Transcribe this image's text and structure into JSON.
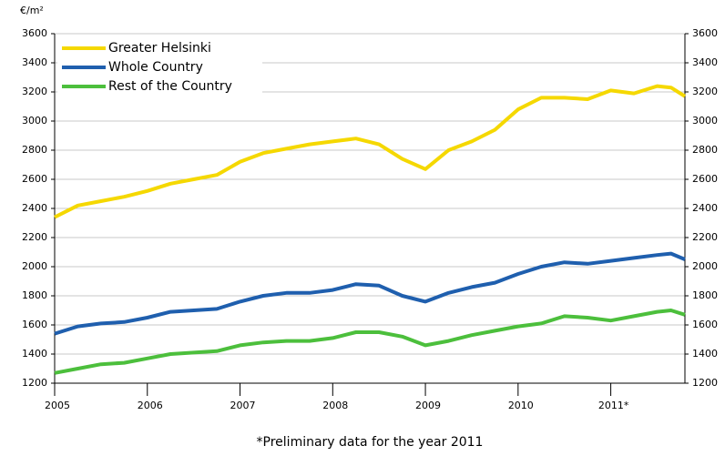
{
  "chart_data": {
    "type": "line",
    "y_label": "€/m²",
    "footnote": "*Preliminary data for the year 2011",
    "x": [
      2005,
      2005.25,
      2005.5,
      2005.75,
      2006,
      2006.25,
      2006.5,
      2006.75,
      2007,
      2007.25,
      2007.5,
      2007.75,
      2008,
      2008.25,
      2008.5,
      2008.75,
      2009,
      2009.25,
      2009.5,
      2009.75,
      2010,
      2010.25,
      2010.5,
      2010.75,
      2011,
      2011.25,
      2011.5,
      2011.65,
      2011.8
    ],
    "series": [
      {
        "name": "Greater Helsinki",
        "color": "#f5d800",
        "values": [
          2340,
          2420,
          2450,
          2480,
          2520,
          2570,
          2600,
          2630,
          2720,
          2780,
          2810,
          2840,
          2860,
          2880,
          2840,
          2740,
          2670,
          2800,
          2860,
          2940,
          3080,
          3160,
          3160,
          3150,
          3210,
          3190,
          3240,
          3230,
          3170
        ]
      },
      {
        "name": "Whole Country",
        "color": "#1f5fae",
        "values": [
          1540,
          1590,
          1610,
          1620,
          1650,
          1690,
          1700,
          1710,
          1760,
          1800,
          1820,
          1820,
          1840,
          1880,
          1870,
          1800,
          1760,
          1820,
          1860,
          1890,
          1950,
          2000,
          2030,
          2020,
          2040,
          2060,
          2080,
          2090,
          2050
        ]
      },
      {
        "name": "Rest of the Country",
        "color": "#4cbf3c",
        "values": [
          1270,
          1300,
          1330,
          1340,
          1370,
          1400,
          1410,
          1420,
          1460,
          1480,
          1490,
          1490,
          1510,
          1550,
          1550,
          1520,
          1460,
          1490,
          1530,
          1560,
          1590,
          1610,
          1660,
          1650,
          1630,
          1660,
          1690,
          1700,
          1670
        ]
      }
    ],
    "xlim": [
      2005,
      2011.8
    ],
    "xticks": [
      2005,
      2006,
      2007,
      2008,
      2009,
      2010,
      {
        "value": 2011,
        "label": "2011*"
      }
    ],
    "ylim": [
      1200,
      3600
    ],
    "yticks": [
      1200,
      1400,
      1600,
      1800,
      2000,
      2200,
      2400,
      2600,
      2800,
      3000,
      3200,
      3400,
      3600
    ],
    "grid": true
  }
}
